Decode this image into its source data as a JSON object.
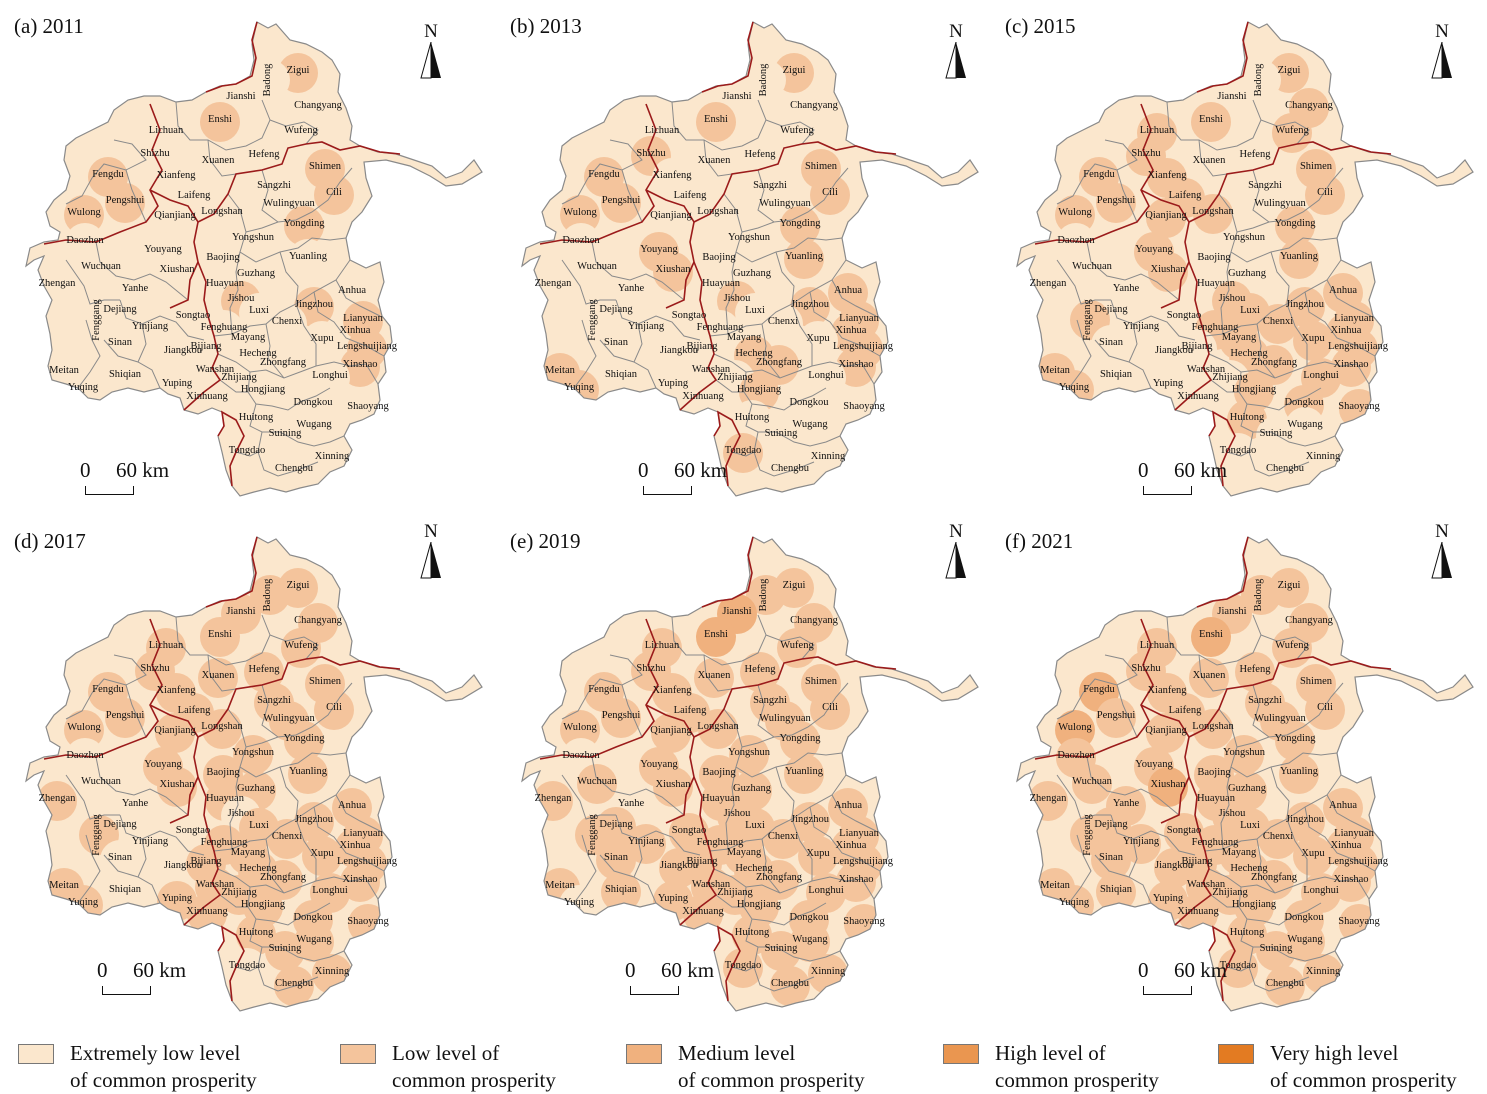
{
  "panels": [
    {
      "label": "(a) 2011"
    },
    {
      "label": "(b) 2013"
    },
    {
      "label": "(c) 2015"
    },
    {
      "label": "(d) 2017"
    },
    {
      "label": "(e) 2019"
    },
    {
      "label": "(f) 2021"
    }
  ],
  "north_label": "N",
  "scale_bar": {
    "start": "0",
    "end": "60 km"
  },
  "counties": [
    "Zigui",
    "Badong",
    "Jianshi",
    "Changyang",
    "Enshi",
    "Lichuan",
    "Wufeng",
    "Hefeng",
    "Shizhu",
    "Xuanen",
    "Shimen",
    "Fengdu",
    "Xianfeng",
    "Sangzhi",
    "Cili",
    "Pengshui",
    "Laifeng",
    "Wulong",
    "Qianjiang",
    "Longshan",
    "Wulingyuan",
    "Yongding",
    "Daozhen",
    "Youyang",
    "Yongshun",
    "Baojing",
    "Yuanling",
    "Wuchuan",
    "Xiushan",
    "Guzhang",
    "Anhua",
    "Zhengan",
    "Yanhe",
    "Huayuan",
    "Jishou",
    "Jingzhou",
    "Dejiang",
    "Songtao",
    "Luxi",
    "Chenxi",
    "Xinhua",
    "Lianyuan",
    "Fenggang",
    "Yinjiang",
    "Fenghuang",
    "Mayang",
    "Xupu",
    "Lengshuijiang",
    "Sinan",
    "Jiangkou",
    "Bijiang",
    "Hecheng",
    "Zhongfang",
    "Xinshao",
    "Meitan",
    "Shiqian",
    "Wanshan",
    "Zhijiang",
    "Longhui",
    "Yuqing",
    "Yuping",
    "Hongjiang",
    "Dongkou",
    "Xinhuang",
    "Shaoyang",
    "Huitong",
    "Suining",
    "Wugang",
    "Tongdao",
    "Chengbu",
    "Xinning"
  ],
  "legend": [
    {
      "label": "Extremely low level\nof common prosperity",
      "color": "#fbe7cd"
    },
    {
      "label": "Low level of\ncommon prosperity",
      "color": "#f4c49c"
    },
    {
      "label": "Medium level\nof common prosperity",
      "color": "#f0b17e"
    },
    {
      "label": "High level of\ncommon prosperity",
      "color": "#ea9650"
    },
    {
      "label": "Very high level\nof common prosperity",
      "color": "#e37b22"
    }
  ]
}
